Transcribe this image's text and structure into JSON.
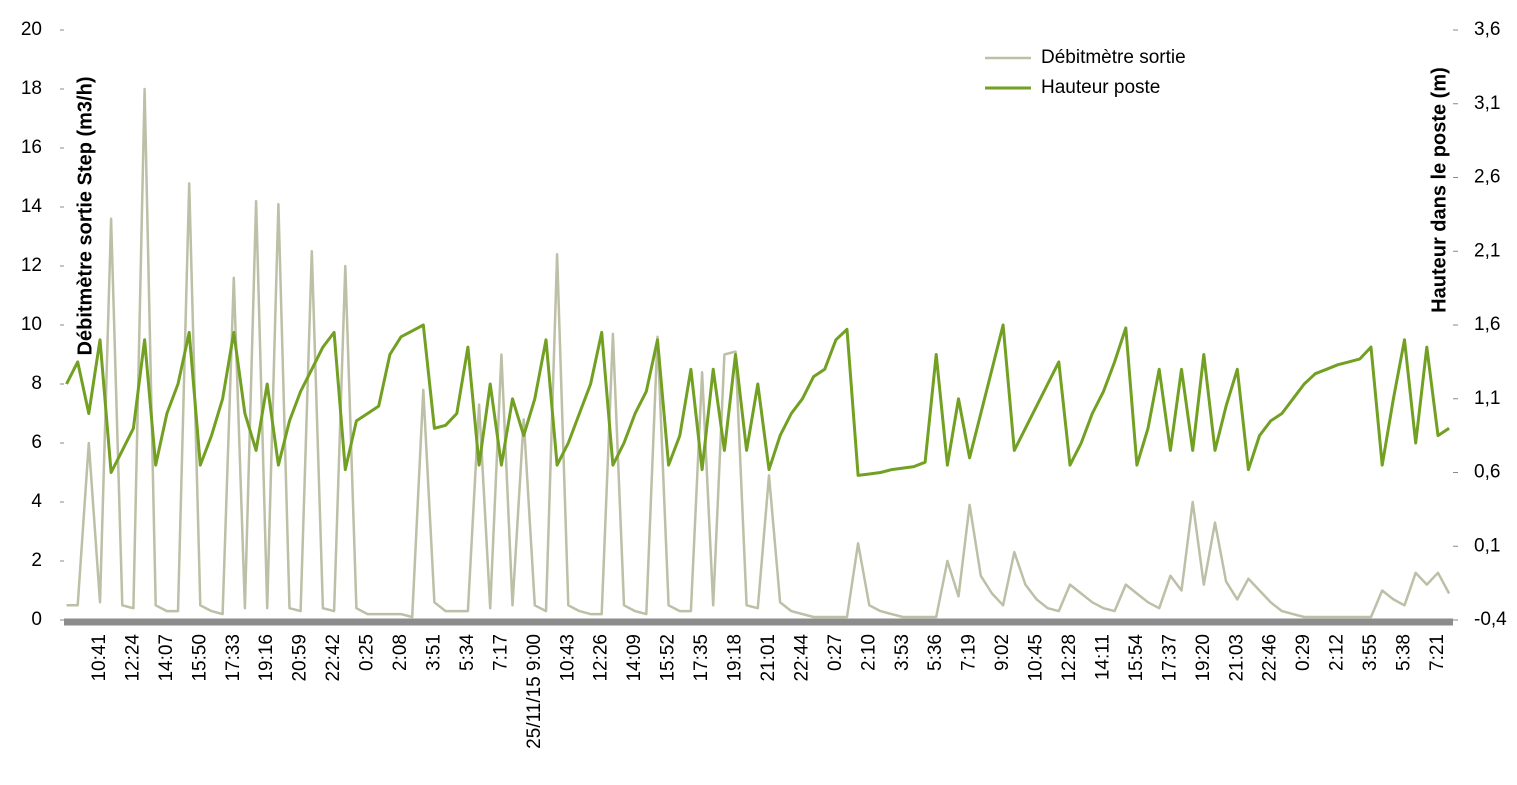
{
  "chart_data": {
    "type": "line",
    "y_label": "Débitmètre sortie Step (m3/h)",
    "y2_label": "Hauteur dans le poste (m)",
    "categories": [
      null,
      null,
      null,
      "10:41",
      null,
      null,
      "12:24",
      null,
      null,
      "14:07",
      null,
      null,
      "15:50",
      null,
      null,
      "17:33",
      null,
      null,
      "19:16",
      null,
      null,
      "20:59",
      null,
      null,
      "22:42",
      null,
      null,
      "0:25",
      null,
      null,
      "2:08",
      null,
      null,
      "3:51",
      null,
      null,
      "5:34",
      null,
      null,
      "7:17",
      null,
      null,
      "25/11/15 9:00",
      null,
      null,
      "10:43",
      null,
      null,
      "12:26",
      null,
      null,
      "14:09",
      null,
      null,
      "15:52",
      null,
      null,
      "17:35",
      null,
      null,
      "19:18",
      null,
      null,
      "21:01",
      null,
      null,
      "22:44",
      null,
      null,
      "0:27",
      null,
      null,
      "2:10",
      null,
      null,
      "3:53",
      null,
      null,
      "5:36",
      null,
      null,
      "7:19",
      null,
      null,
      "9:02",
      null,
      null,
      "10:45",
      null,
      null,
      "12:28",
      null,
      null,
      "14:11",
      null,
      null,
      "15:54",
      null,
      null,
      "17:37",
      null,
      null,
      "19:20",
      null,
      null,
      "21:03",
      null,
      null,
      "22:46",
      null,
      null,
      "0:29",
      null,
      null,
      "2:12",
      null,
      null,
      "3:55",
      null,
      null,
      "5:38",
      null,
      null,
      "7:21",
      null
    ],
    "series": [
      {
        "name": "Débitmètre sortie",
        "color": "#bdbfa6",
        "width": 2.5,
        "values": [
          0.5,
          0.5,
          6.0,
          0.6,
          13.6,
          0.5,
          0.4,
          18,
          0.5,
          0.3,
          0.3,
          14.8,
          0.5,
          0.3,
          0.2,
          11.6,
          0.4,
          14.2,
          0.4,
          14.1,
          0.4,
          0.3,
          12.5,
          0.4,
          0.3,
          12.0,
          0.4,
          0.2,
          0.2,
          0.2,
          0.2,
          0.1,
          7.8,
          0.6,
          0.3,
          0.3,
          0.3,
          7.3,
          0.4,
          9.0,
          0.5,
          6.8,
          0.5,
          0.3,
          12.4,
          0.5,
          0.3,
          0.2,
          0.2,
          9.7,
          0.5,
          0.3,
          0.2,
          9.6,
          0.5,
          0.3,
          0.3,
          8.4,
          0.5,
          9.0,
          9.1,
          0.5,
          0.4,
          4.9,
          0.6,
          0.3,
          0.2,
          0.1,
          0.1,
          0.1,
          0.1,
          2.6,
          0.5,
          0.3,
          0.2,
          0.1,
          0.1,
          0.1,
          0.1,
          2.0,
          0.8,
          3.9,
          1.5,
          0.9,
          0.5,
          2.3,
          1.2,
          0.7,
          0.4,
          0.3,
          1.2,
          0.9,
          0.6,
          0.4,
          0.3,
          1.2,
          0.9,
          0.6,
          0.4,
          1.5,
          1.0,
          4.0,
          1.2,
          3.3,
          1.3,
          0.7,
          1.4,
          1.0,
          0.6,
          0.3,
          0.2,
          0.1,
          0.1,
          0.1,
          0.1,
          0.1,
          0.1,
          0.1,
          1.0,
          0.7,
          0.5,
          1.6,
          1.2,
          1.6,
          0.9
        ]
      },
      {
        "name": "Hauteur poste",
        "color": "#72a022",
        "width": 3,
        "axis": "y2",
        "values": [
          1.2,
          1.35,
          1.0,
          1.5,
          0.6,
          0.75,
          0.9,
          1.5,
          0.65,
          1.0,
          1.2,
          1.55,
          0.65,
          0.85,
          1.1,
          1.55,
          1.0,
          0.75,
          1.2,
          0.65,
          0.95,
          1.15,
          1.3,
          1.45,
          1.55,
          0.62,
          0.95,
          1.0,
          1.05,
          1.4,
          1.52,
          1.56,
          1.6,
          0.9,
          0.92,
          1.0,
          1.45,
          0.65,
          1.2,
          0.65,
          1.1,
          0.85,
          1.1,
          1.5,
          0.65,
          0.8,
          1.0,
          1.2,
          1.55,
          0.65,
          0.8,
          1.0,
          1.15,
          1.5,
          0.65,
          0.85,
          1.3,
          0.62,
          1.3,
          0.75,
          1.4,
          0.75,
          1.2,
          0.62,
          0.85,
          1.0,
          1.1,
          1.25,
          1.3,
          1.5,
          1.57,
          0.58,
          0.59,
          0.6,
          0.62,
          0.63,
          0.64,
          0.67,
          1.4,
          0.65,
          1.1,
          0.7,
          1.0,
          1.3,
          1.6,
          0.75,
          0.9,
          1.05,
          1.2,
          1.35,
          0.65,
          0.8,
          1.0,
          1.15,
          1.35,
          1.58,
          0.65,
          0.9,
          1.3,
          0.75,
          1.3,
          0.75,
          1.4,
          0.75,
          1.05,
          1.3,
          0.62,
          0.85,
          0.95,
          1.0,
          1.1,
          1.2,
          1.27,
          1.3,
          1.33,
          1.35,
          1.37,
          1.45,
          0.65,
          1.1,
          1.5,
          0.8,
          1.45,
          0.85,
          0.9
        ]
      }
    ],
    "ylim": [
      0,
      20
    ],
    "yticks": [
      0,
      2,
      4,
      6,
      8,
      10,
      12,
      14,
      16,
      18,
      20
    ],
    "y2lim": [
      -0.4,
      3.6
    ],
    "y2ticks": [
      {
        "value": -0.4,
        "label": "-0,4"
      },
      {
        "value": 0.1,
        "label": "0,1"
      },
      {
        "value": 0.6,
        "label": "0,6"
      },
      {
        "value": 1.1,
        "label": "1,1"
      },
      {
        "value": 1.6,
        "label": "1,6"
      },
      {
        "value": 2.1,
        "label": "2,1"
      },
      {
        "value": 2.6,
        "label": "2,6"
      },
      {
        "value": 3.1,
        "label": "3,1"
      },
      {
        "value": 3.6,
        "label": "3,6"
      }
    ],
    "grid": false,
    "legend": "top-right"
  }
}
